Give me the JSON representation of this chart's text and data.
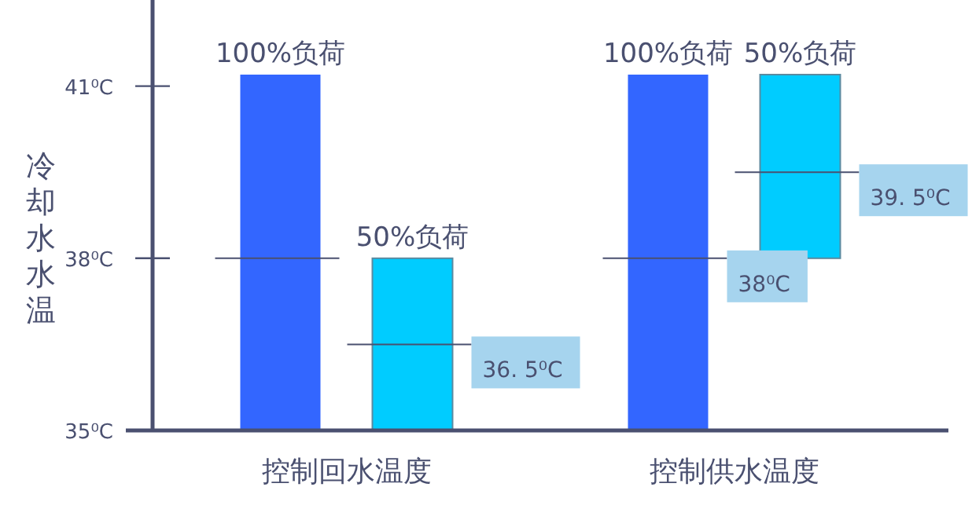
{
  "chart_data": {
    "type": "bar",
    "ylabel": "冷却水水温",
    "categories": [
      "控制回水温度",
      "控制供水温度"
    ],
    "series": [
      {
        "name": "100%负荷",
        "color": "#3366ff",
        "values": [
          6.2,
          6.2
        ],
        "base": [
          35,
          35
        ]
      },
      {
        "name": "50%负荷",
        "color": "#00ccff",
        "values": [
          3,
          3.2
        ],
        "base": [
          35,
          38
        ]
      }
    ],
    "ylim": [
      35,
      42.5
    ],
    "yticks": [
      {
        "value": 35,
        "label": "35⁰C"
      },
      {
        "value": 38,
        "label": "38⁰C"
      },
      {
        "value": 41,
        "label": "41⁰C"
      }
    ],
    "ref_lines": [
      {
        "axis": "y",
        "value": 36.5,
        "label": "36. 5⁰C"
      },
      {
        "axis": "y",
        "value": 38,
        "label": "38⁰C"
      },
      {
        "axis": "y",
        "value": 39.5,
        "label": "39. 5⁰C"
      }
    ],
    "grid": false
  }
}
